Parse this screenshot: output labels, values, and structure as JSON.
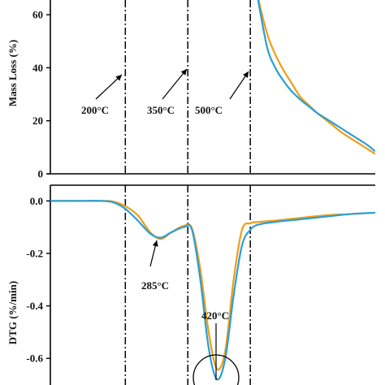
{
  "chart_data": [
    {
      "type": "line",
      "panel": "top",
      "ylabel": "Mass Loss (%)",
      "xlabel": "",
      "ylim": [
        0,
        68
      ],
      "xlim": [
        20,
        800
      ],
      "yticks": [
        0,
        20,
        40,
        60
      ],
      "series": [
        {
          "color": "#f39c12",
          "x": [
            516,
            540,
            560,
            580,
            600,
            620,
            640,
            660,
            680,
            700,
            720,
            740,
            760,
            780,
            800
          ],
          "y": [
            68,
            53,
            45,
            39,
            34,
            29,
            26,
            23,
            20.5,
            18,
            15.5,
            13.5,
            11.5,
            9.5,
            7.5
          ]
        },
        {
          "color": "#2a9fd6",
          "x": [
            516,
            540,
            560,
            580,
            600,
            620,
            640,
            660,
            680,
            700,
            720,
            740,
            760,
            780,
            800
          ],
          "y": [
            68,
            48,
            40,
            35,
            31,
            28,
            25.5,
            23,
            21,
            19,
            17,
            15,
            13,
            11,
            8.5
          ]
        }
      ],
      "vlines": [
        200,
        350,
        500
      ],
      "annotations": [
        {
          "text": "200°C",
          "x": 108,
          "y": 24
        },
        {
          "text": "350°C",
          "x": 255,
          "y": 24
        },
        {
          "text": "500°C",
          "x": 395,
          "y": 24
        }
      ]
    },
    {
      "type": "line",
      "panel": "bottom",
      "ylabel": "DTG (%/min)",
      "xlabel": "",
      "ylim": [
        -0.72,
        0.06
      ],
      "xlim": [
        20,
        800
      ],
      "yticks": [
        0.0,
        -0.2,
        -0.4,
        -0.6
      ],
      "ytick_labels": [
        "0.0",
        "-0.2",
        "-0.4",
        "-0.6"
      ],
      "series": [
        {
          "color": "#f39c12",
          "x": [
            20,
            80,
            140,
            170,
            200,
            230,
            260,
            285,
            310,
            340,
            360,
            380,
            400,
            420,
            440,
            460,
            480,
            500,
            520,
            560,
            620,
            680,
            740,
            800
          ],
          "y": [
            0,
            0,
            0,
            -0.002,
            -0.02,
            -0.055,
            -0.12,
            -0.145,
            -0.12,
            -0.095,
            -0.105,
            -0.26,
            -0.5,
            -0.64,
            -0.57,
            -0.3,
            -0.11,
            -0.085,
            -0.08,
            -0.075,
            -0.065,
            -0.055,
            -0.05,
            -0.045
          ]
        },
        {
          "color": "#2a9fd6",
          "x": [
            20,
            80,
            140,
            170,
            200,
            230,
            260,
            285,
            310,
            340,
            360,
            380,
            400,
            420,
            440,
            460,
            480,
            500,
            520,
            560,
            620,
            680,
            740,
            800
          ],
          "y": [
            0,
            0,
            0,
            -0.005,
            -0.03,
            -0.075,
            -0.125,
            -0.14,
            -0.12,
            -0.1,
            -0.11,
            -0.3,
            -0.56,
            -0.68,
            -0.6,
            -0.36,
            -0.17,
            -0.11,
            -0.09,
            -0.08,
            -0.07,
            -0.06,
            -0.05,
            -0.045
          ]
        }
      ],
      "vlines": [
        200,
        350,
        500
      ],
      "annotations": [
        {
          "text": "285°C",
          "x": 310,
          "y": -0.31
        },
        {
          "text": "420°C",
          "x": 420,
          "y": -0.44
        }
      ]
    }
  ]
}
